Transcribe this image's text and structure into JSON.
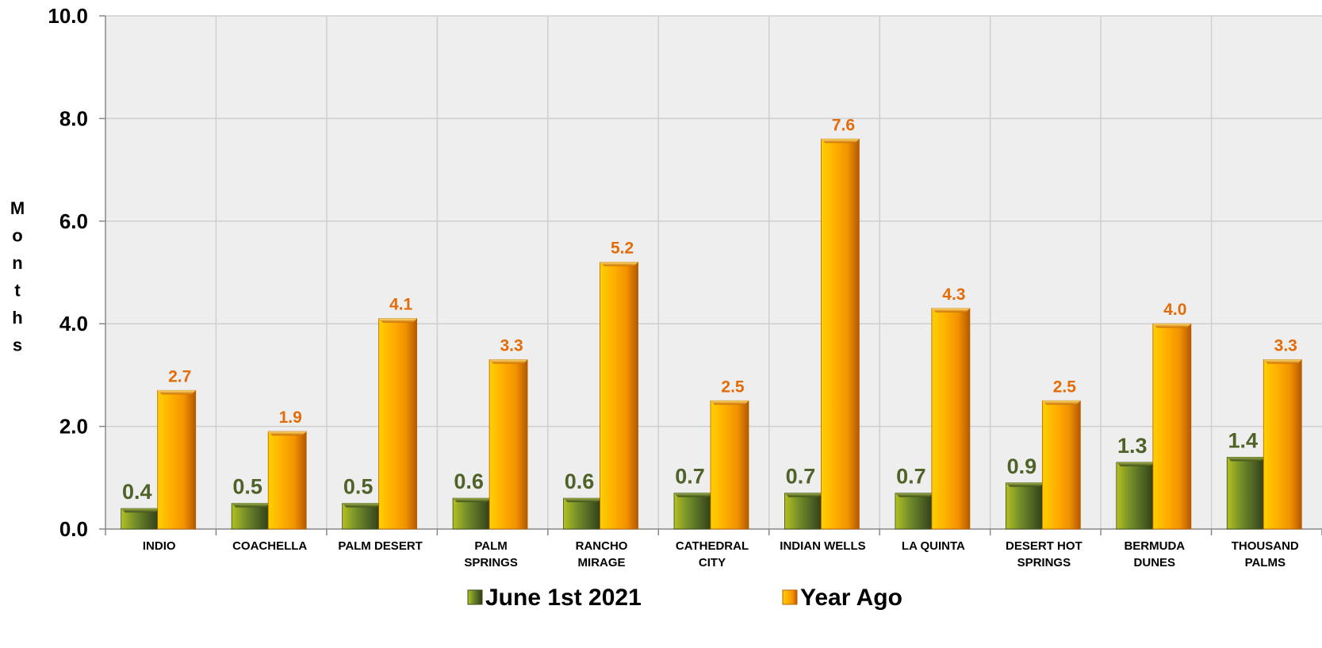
{
  "chart_data": {
    "type": "bar",
    "categories": [
      [
        "INDIO"
      ],
      [
        "COACHELLA"
      ],
      [
        "PALM DESERT"
      ],
      [
        "PALM",
        "SPRINGS"
      ],
      [
        "RANCHO",
        "MIRAGE"
      ],
      [
        "CATHEDRAL",
        "CITY"
      ],
      [
        "INDIAN WELLS"
      ],
      [
        "LA QUINTA"
      ],
      [
        "DESERT HOT",
        "SPRINGS"
      ],
      [
        "BERMUDA",
        "DUNES"
      ],
      [
        "THOUSAND",
        "PALMS"
      ]
    ],
    "series": [
      {
        "name": "June 1st  2021",
        "values": [
          0.4,
          0.5,
          0.5,
          0.6,
          0.6,
          0.7,
          0.7,
          0.7,
          0.9,
          1.3,
          1.4
        ],
        "labels": [
          "0.4",
          "0.5",
          "0.5",
          "0.6",
          "0.6",
          "0.7",
          "0.7",
          "0.7",
          "0.9",
          "1.3",
          "1.4"
        ],
        "color": "#556b2f",
        "label_color": "#4f6228"
      },
      {
        "name": "Year Ago",
        "values": [
          2.7,
          1.9,
          4.1,
          3.3,
          5.2,
          2.5,
          7.6,
          4.3,
          2.5,
          4.0,
          3.3
        ],
        "labels": [
          "2.7",
          "1.9",
          "4.1",
          "3.3",
          "5.2",
          "2.5",
          "7.6",
          "4.3",
          "2.5",
          "4.0",
          "3.3"
        ],
        "color": "#f59b00",
        "label_color": "#e36c09"
      }
    ],
    "ylabel": "Months",
    "ylim": [
      0,
      10
    ],
    "yticks": [
      "0.0",
      "2.0",
      "4.0",
      "6.0",
      "8.0",
      "10.0"
    ],
    "grid": true,
    "legend_position": "bottom"
  },
  "colors": {
    "plot_background": "#eeeeee",
    "gridline": "#cfcfcf"
  }
}
